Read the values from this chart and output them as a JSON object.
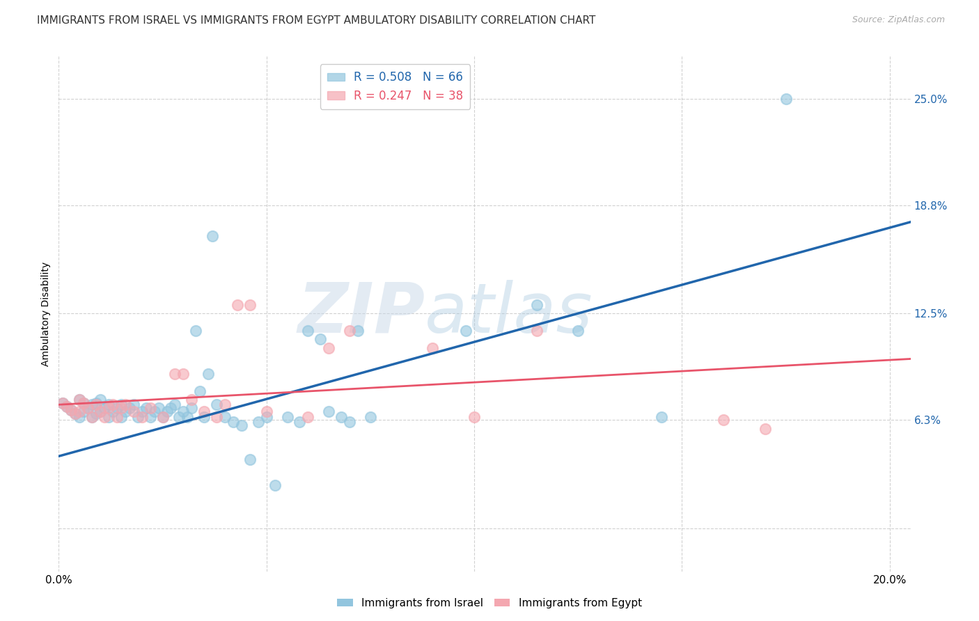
{
  "title": "IMMIGRANTS FROM ISRAEL VS IMMIGRANTS FROM EGYPT AMBULATORY DISABILITY CORRELATION CHART",
  "source": "Source: ZipAtlas.com",
  "ylabel": "Ambulatory Disability",
  "xlim": [
    0.0,
    0.205
  ],
  "ylim": [
    -0.025,
    0.275
  ],
  "israel_color": "#92c5de",
  "egypt_color": "#f4a7b0",
  "israel_line_color": "#2166ac",
  "egypt_line_color": "#e8546a",
  "legend_israel_R": "0.508",
  "legend_israel_N": "66",
  "legend_egypt_R": "0.247",
  "legend_egypt_N": "38",
  "watermark_text": "ZIPatlas",
  "title_fontsize": 11,
  "axis_label_fontsize": 10,
  "tick_fontsize": 10,
  "legend_fontsize": 12,
  "background_color": "#ffffff",
  "grid_color": "#cccccc",
  "y_ticks": [
    0.0,
    0.063,
    0.125,
    0.188,
    0.25
  ],
  "y_tick_labels": [
    "",
    "6.3%",
    "12.5%",
    "18.8%",
    "25.0%"
  ],
  "israel_x": [
    0.001,
    0.002,
    0.003,
    0.004,
    0.005,
    0.005,
    0.006,
    0.006,
    0.007,
    0.008,
    0.008,
    0.009,
    0.009,
    0.01,
    0.01,
    0.011,
    0.012,
    0.012,
    0.013,
    0.014,
    0.015,
    0.015,
    0.016,
    0.017,
    0.018,
    0.019,
    0.02,
    0.021,
    0.022,
    0.023,
    0.024,
    0.025,
    0.026,
    0.027,
    0.028,
    0.029,
    0.03,
    0.031,
    0.032,
    0.033,
    0.034,
    0.035,
    0.036,
    0.037,
    0.038,
    0.04,
    0.042,
    0.044,
    0.046,
    0.048,
    0.05,
    0.052,
    0.055,
    0.058,
    0.06,
    0.063,
    0.065,
    0.068,
    0.07,
    0.072,
    0.075,
    0.098,
    0.115,
    0.125,
    0.145,
    0.175
  ],
  "israel_y": [
    0.073,
    0.071,
    0.069,
    0.067,
    0.075,
    0.065,
    0.073,
    0.068,
    0.07,
    0.065,
    0.072,
    0.067,
    0.073,
    0.068,
    0.075,
    0.07,
    0.072,
    0.065,
    0.068,
    0.07,
    0.065,
    0.072,
    0.068,
    0.07,
    0.072,
    0.065,
    0.068,
    0.07,
    0.065,
    0.068,
    0.07,
    0.065,
    0.068,
    0.07,
    0.072,
    0.065,
    0.068,
    0.065,
    0.07,
    0.115,
    0.08,
    0.065,
    0.09,
    0.17,
    0.072,
    0.065,
    0.062,
    0.06,
    0.04,
    0.062,
    0.065,
    0.025,
    0.065,
    0.062,
    0.115,
    0.11,
    0.068,
    0.065,
    0.062,
    0.115,
    0.065,
    0.115,
    0.13,
    0.115,
    0.065,
    0.25
  ],
  "egypt_x": [
    0.001,
    0.002,
    0.003,
    0.004,
    0.005,
    0.005,
    0.006,
    0.007,
    0.008,
    0.009,
    0.01,
    0.011,
    0.012,
    0.013,
    0.014,
    0.015,
    0.016,
    0.018,
    0.02,
    0.022,
    0.025,
    0.028,
    0.03,
    0.032,
    0.035,
    0.038,
    0.04,
    0.043,
    0.046,
    0.05,
    0.06,
    0.065,
    0.07,
    0.09,
    0.1,
    0.115,
    0.16,
    0.17
  ],
  "egypt_y": [
    0.073,
    0.071,
    0.069,
    0.067,
    0.075,
    0.068,
    0.073,
    0.07,
    0.065,
    0.072,
    0.068,
    0.065,
    0.07,
    0.072,
    0.065,
    0.07,
    0.072,
    0.068,
    0.065,
    0.07,
    0.065,
    0.09,
    0.09,
    0.075,
    0.068,
    0.065,
    0.072,
    0.13,
    0.13,
    0.068,
    0.065,
    0.105,
    0.115,
    0.105,
    0.065,
    0.115,
    0.063,
    0.058
  ]
}
